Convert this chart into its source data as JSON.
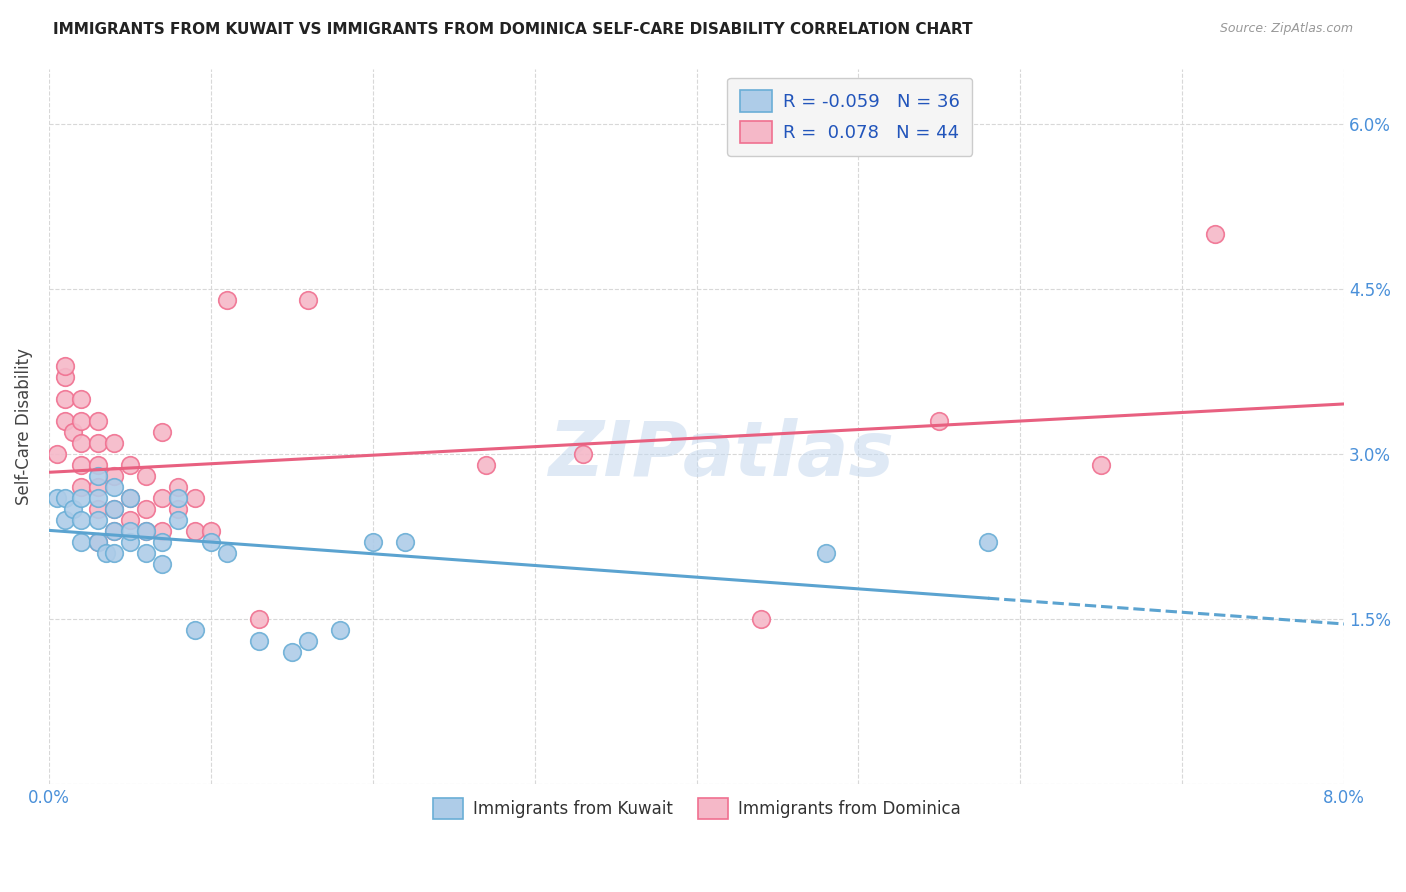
{
  "title": "IMMIGRANTS FROM KUWAIT VS IMMIGRANTS FROM DOMINICA SELF-CARE DISABILITY CORRELATION CHART",
  "source": "Source: ZipAtlas.com",
  "ylabel": "Self-Care Disability",
  "xlim": [
    0.0,
    0.08
  ],
  "ylim": [
    0.0,
    0.065
  ],
  "ytick_positions": [
    0.0,
    0.015,
    0.03,
    0.045,
    0.06
  ],
  "ytick_labels": [
    "",
    "1.5%",
    "3.0%",
    "4.5%",
    "6.0%"
  ],
  "kuwait_color": "#aecce8",
  "dominica_color": "#f5b8c8",
  "kuwait_edge_color": "#6aaed6",
  "dominica_edge_color": "#f07090",
  "kuwait_line_color": "#5ba3d0",
  "dominica_line_color": "#e86080",
  "kuwait_R": -0.059,
  "kuwait_N": 36,
  "dominica_R": 0.078,
  "dominica_N": 44,
  "watermark": "ZIPatlas",
  "background_color": "#ffffff",
  "grid_color": "#d8d8d8",
  "kuwait_scatter_x": [
    0.0005,
    0.001,
    0.001,
    0.0015,
    0.002,
    0.002,
    0.002,
    0.003,
    0.003,
    0.003,
    0.003,
    0.0035,
    0.004,
    0.004,
    0.004,
    0.004,
    0.005,
    0.005,
    0.005,
    0.006,
    0.006,
    0.007,
    0.007,
    0.008,
    0.008,
    0.009,
    0.01,
    0.011,
    0.013,
    0.015,
    0.016,
    0.018,
    0.02,
    0.022,
    0.048,
    0.058
  ],
  "kuwait_scatter_y": [
    0.026,
    0.024,
    0.026,
    0.025,
    0.022,
    0.024,
    0.026,
    0.022,
    0.024,
    0.026,
    0.028,
    0.021,
    0.021,
    0.023,
    0.025,
    0.027,
    0.022,
    0.023,
    0.026,
    0.021,
    0.023,
    0.02,
    0.022,
    0.024,
    0.026,
    0.014,
    0.022,
    0.021,
    0.013,
    0.012,
    0.013,
    0.014,
    0.022,
    0.022,
    0.021,
    0.022
  ],
  "dominica_scatter_x": [
    0.0005,
    0.001,
    0.001,
    0.001,
    0.001,
    0.0015,
    0.002,
    0.002,
    0.002,
    0.002,
    0.002,
    0.003,
    0.003,
    0.003,
    0.003,
    0.003,
    0.003,
    0.004,
    0.004,
    0.004,
    0.004,
    0.005,
    0.005,
    0.005,
    0.006,
    0.006,
    0.006,
    0.007,
    0.007,
    0.007,
    0.008,
    0.008,
    0.009,
    0.009,
    0.01,
    0.011,
    0.013,
    0.016,
    0.027,
    0.033,
    0.044,
    0.055,
    0.065,
    0.072
  ],
  "dominica_scatter_y": [
    0.03,
    0.033,
    0.035,
    0.037,
    0.038,
    0.032,
    0.027,
    0.029,
    0.031,
    0.033,
    0.035,
    0.022,
    0.025,
    0.027,
    0.029,
    0.031,
    0.033,
    0.023,
    0.025,
    0.028,
    0.031,
    0.024,
    0.026,
    0.029,
    0.023,
    0.025,
    0.028,
    0.023,
    0.026,
    0.032,
    0.025,
    0.027,
    0.023,
    0.026,
    0.023,
    0.044,
    0.015,
    0.044,
    0.029,
    0.03,
    0.015,
    0.033,
    0.029,
    0.05
  ],
  "legend_label_color": "#2255bb"
}
